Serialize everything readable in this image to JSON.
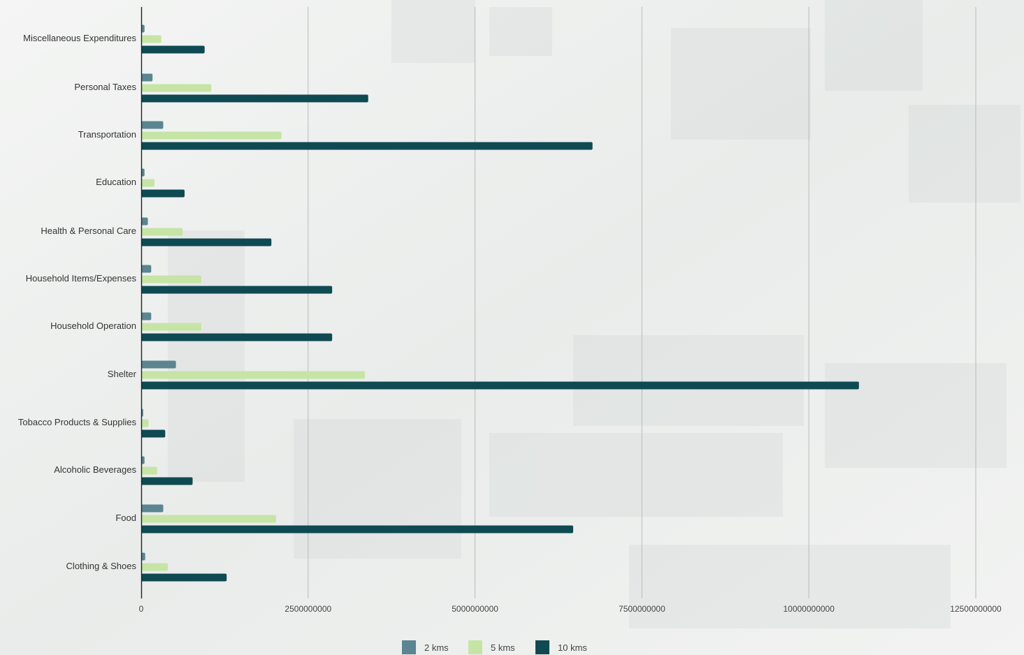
{
  "chart_data": {
    "type": "bar",
    "orientation": "horizontal",
    "categories": [
      "Miscellaneous Expenditures",
      "Personal Taxes",
      "Transportation",
      "Education",
      "Health & Personal Care",
      "Household Items/Expenses",
      "Household Operation",
      "Shelter",
      "Tobacco Products & Supplies",
      "Alcoholic Beverages",
      "Food",
      "Clothing & Shoes"
    ],
    "series": [
      {
        "name": "2 kms",
        "color": "#5b8590",
        "values": [
          50000000,
          170000000,
          330000000,
          50000000,
          100000000,
          150000000,
          150000000,
          520000000,
          30000000,
          50000000,
          330000000,
          60000000
        ]
      },
      {
        "name": "5 kms",
        "color": "#c6e4a6",
        "values": [
          300000000,
          1050000000,
          2100000000,
          200000000,
          620000000,
          900000000,
          900000000,
          3350000000,
          110000000,
          240000000,
          2020000000,
          400000000
        ]
      },
      {
        "name": "10 kms",
        "color": "#0f4a53",
        "values": [
          950000000,
          3400000000,
          6760000000,
          650000000,
          1950000000,
          2860000000,
          2860000000,
          10750000000,
          360000000,
          770000000,
          6470000000,
          1280000000
        ]
      }
    ],
    "xticks": [
      "0",
      "2500000000",
      "5000000000",
      "7500000000",
      "10000000000",
      "12500000000"
    ],
    "xlim": [
      0,
      12500000000
    ],
    "grid": true,
    "legend_position": "bottom-center"
  }
}
